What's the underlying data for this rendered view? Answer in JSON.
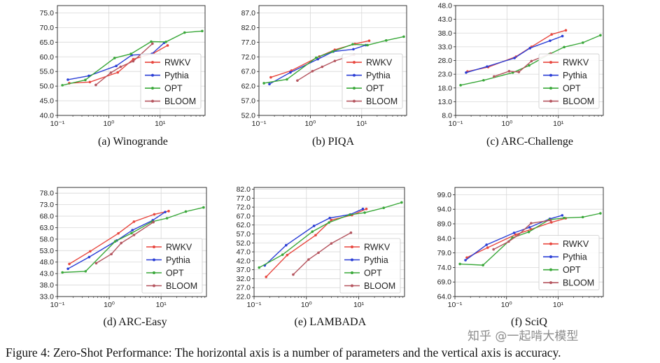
{
  "colors": {
    "RWKV": "#e8473f",
    "Pythia": "#2b3fd6",
    "OPT": "#3aa83a",
    "BLOOM": "#b5555f",
    "grid": "#d8d8d8",
    "axis": "#222222"
  },
  "figure_caption": "Figure 4: Zero-Shot Performance: The horizontal axis is a number of parameters and the vertical axis is accuracy.",
  "watermark": "知乎 @一起啃大模型",
  "x_axis": {
    "scale": "log",
    "range": [
      0.1,
      75
    ],
    "tick_labels": [
      "10⁻¹",
      "10⁰",
      "10¹"
    ],
    "tick_values": [
      0.1,
      1,
      10
    ]
  },
  "chart_data": [
    {
      "id": "winogrande",
      "type": "line",
      "caption": "(a) Winogrande",
      "ylim": [
        40.0,
        77.5
      ],
      "yticks": [
        "40.0",
        "45.0",
        "50.0",
        "55.0",
        "60.0",
        "65.0",
        "70.0",
        "75.0"
      ],
      "legend": [
        "RWKV",
        "Pythia",
        "OPT",
        "BLOOM"
      ],
      "legend_position": "center-right",
      "series": [
        {
          "name": "RWKV",
          "x": [
            0.17,
            0.43,
            1.5,
            3,
            7.4,
            14
          ],
          "y": [
            51.0,
            51.4,
            54.7,
            59.2,
            61.2,
            63.9
          ]
        },
        {
          "name": "Pythia",
          "x": [
            0.16,
            0.41,
            1.4,
            2.8,
            6.9,
            12
          ],
          "y": [
            52.2,
            53.5,
            56.9,
            60.6,
            61.0,
            64.8
          ]
        },
        {
          "name": "OPT",
          "x": [
            0.125,
            0.35,
            1.3,
            2.7,
            6.7,
            13,
            30,
            66
          ],
          "y": [
            50.3,
            52.1,
            59.6,
            61.0,
            65.2,
            65.1,
            68.3,
            68.8
          ]
        },
        {
          "name": "BLOOM",
          "x": [
            0.56,
            1.1,
            1.7,
            3,
            7.1
          ],
          "y": [
            50.4,
            54.6,
            56.6,
            58.5,
            64.5
          ]
        }
      ]
    },
    {
      "id": "piqa",
      "type": "line",
      "caption": "(b) PIQA",
      "ylim": [
        52.0,
        89.5
      ],
      "yticks": [
        "52.0",
        "57.0",
        "62.0",
        "67.0",
        "72.0",
        "77.0",
        "82.0",
        "87.0"
      ],
      "legend": [
        "RWKV",
        "Pythia",
        "OPT",
        "BLOOM"
      ],
      "legend_position": "center-right",
      "series": [
        {
          "name": "RWKV",
          "x": [
            0.17,
            0.43,
            1.5,
            3,
            7.4,
            14
          ],
          "y": [
            65.0,
            67.3,
            72.1,
            74.4,
            76.4,
            77.5
          ]
        },
        {
          "name": "Pythia",
          "x": [
            0.16,
            0.41,
            1.4,
            2.8,
            6.9,
            12
          ],
          "y": [
            62.7,
            66.7,
            71.2,
            73.8,
            74.6,
            76.0
          ]
        },
        {
          "name": "OPT",
          "x": [
            0.125,
            0.35,
            1.3,
            2.7,
            6.7,
            13,
            30,
            66
          ],
          "y": [
            63.0,
            64.3,
            71.7,
            73.8,
            76.3,
            76.0,
            77.6,
            78.9
          ]
        },
        {
          "name": "BLOOM",
          "x": [
            0.56,
            1.1,
            1.7,
            3,
            7.1
          ],
          "y": [
            63.9,
            67.1,
            68.6,
            70.6,
            72.7
          ]
        }
      ]
    },
    {
      "id": "arc-challenge",
      "type": "line",
      "caption": "(c) ARC-Challenge",
      "ylim": [
        8.0,
        48.0
      ],
      "yticks": [
        "8.0",
        "13.0",
        "18.0",
        "23.0",
        "28.0",
        "33.0",
        "38.0",
        "43.0",
        "48.0"
      ],
      "legend": [
        "RWKV",
        "Pythia",
        "OPT",
        "BLOOM"
      ],
      "legend_position": "center-right",
      "series": [
        {
          "name": "RWKV",
          "x": [
            0.17,
            0.43,
            1.5,
            3,
            7.4,
            14
          ],
          "y": [
            24.0,
            25.6,
            29.4,
            33.0,
            37.5,
            39.0
          ]
        },
        {
          "name": "Pythia",
          "x": [
            0.16,
            0.41,
            1.4,
            2.8,
            6.9,
            12
          ],
          "y": [
            23.6,
            25.8,
            28.9,
            32.5,
            35.2,
            36.9
          ]
        },
        {
          "name": "OPT",
          "x": [
            0.125,
            0.35,
            1.3,
            2.7,
            6.7,
            13,
            30,
            66
          ],
          "y": [
            19.0,
            20.8,
            23.6,
            26.2,
            30.3,
            32.9,
            34.5,
            37.2
          ]
        },
        {
          "name": "BLOOM",
          "x": [
            0.56,
            1.1,
            1.7,
            3,
            7.1
          ],
          "y": [
            22.2,
            24.1,
            23.8,
            27.8,
            30.5
          ]
        }
      ]
    },
    {
      "id": "arc-easy",
      "type": "line",
      "caption": "(d) ARC-Easy",
      "ylim": [
        33.0,
        80.5
      ],
      "yticks": [
        "33.0",
        "38.0",
        "43.0",
        "48.0",
        "53.0",
        "58.0",
        "63.0",
        "68.0",
        "73.0",
        "78.0"
      ],
      "legend": [
        "RWKV",
        "Pythia",
        "OPT",
        "BLOOM"
      ],
      "legend_position": "bottom-right",
      "series": [
        {
          "name": "RWKV",
          "x": [
            0.17,
            0.43,
            1.5,
            3,
            7.4,
            14
          ],
          "y": [
            47.2,
            52.7,
            60.5,
            65.6,
            68.8,
            70.2
          ]
        },
        {
          "name": "Pythia",
          "x": [
            0.16,
            0.41,
            1.4,
            2.8,
            6.9,
            12
          ],
          "y": [
            45.1,
            50.2,
            57.4,
            61.9,
            66.2,
            69.8
          ]
        },
        {
          "name": "OPT",
          "x": [
            0.125,
            0.35,
            1.3,
            2.7,
            6.7,
            13,
            30,
            66
          ],
          "y": [
            43.5,
            44.0,
            57.0,
            60.6,
            65.6,
            67.1,
            70.0,
            71.8
          ]
        },
        {
          "name": "BLOOM",
          "x": [
            0.56,
            1.1,
            1.7,
            3,
            7.1
          ],
          "y": [
            47.5,
            51.5,
            56.3,
            59.8,
            65.4
          ]
        }
      ]
    },
    {
      "id": "lambada",
      "type": "line",
      "caption": "(e) LAMBADA",
      "ylim": [
        22.0,
        83.0
      ],
      "yticks": [
        "22.0",
        "27.0",
        "32.0",
        "37.0",
        "42.0",
        "47.0",
        "52.0",
        "57.0",
        "62.0",
        "67.0",
        "72.0",
        "77.0",
        "82.0"
      ],
      "legend": [
        "RWKV",
        "Pythia",
        "OPT",
        "BLOOM"
      ],
      "legend_position": "bottom-right",
      "series": [
        {
          "name": "RWKV",
          "x": [
            0.17,
            0.43,
            1.5,
            3,
            7.4,
            14
          ],
          "y": [
            33.0,
            45.2,
            56.3,
            64.8,
            67.5,
            71.0
          ]
        },
        {
          "name": "Pythia",
          "x": [
            0.16,
            0.41,
            1.4,
            2.8,
            6.9,
            12
          ],
          "y": [
            39.4,
            50.7,
            61.5,
            65.9,
            67.9,
            71.0
          ]
        },
        {
          "name": "OPT",
          "x": [
            0.125,
            0.35,
            1.3,
            2.7,
            6.7,
            13,
            30,
            66
          ],
          "y": [
            38.2,
            45.4,
            58.3,
            63.4,
            67.7,
            68.9,
            71.6,
            74.6
          ]
        },
        {
          "name": "BLOOM",
          "x": [
            0.56,
            1.1,
            1.7,
            3,
            7.1
          ],
          "y": [
            34.3,
            42.7,
            46.5,
            51.7,
            57.7
          ]
        }
      ]
    },
    {
      "id": "sciq",
      "type": "line",
      "caption": "(f) SciQ",
      "ylim": [
        64.0,
        101.5
      ],
      "yticks": [
        "64.0",
        "69.0",
        "74.0",
        "79.0",
        "84.0",
        "89.0",
        "94.0",
        "99.0"
      ],
      "legend": [
        "RWKV",
        "Pythia",
        "OPT",
        "BLOOM"
      ],
      "legend_position": "center-right",
      "series": [
        {
          "name": "RWKV",
          "x": [
            0.17,
            0.43,
            1.5,
            3,
            7.4,
            14
          ],
          "y": [
            77.4,
            80.8,
            85.3,
            87.1,
            89.5,
            90.9
          ]
        },
        {
          "name": "Pythia",
          "x": [
            0.16,
            0.41,
            1.4,
            2.8,
            6.9,
            12
          ],
          "y": [
            76.5,
            81.8,
            85.9,
            87.8,
            90.7,
            91.9
          ]
        },
        {
          "name": "OPT",
          "x": [
            0.125,
            0.35,
            1.3,
            2.7,
            6.7,
            13,
            30,
            66
          ],
          "y": [
            75.2,
            74.8,
            84.2,
            86.2,
            90.4,
            91.0,
            91.3,
            92.6
          ]
        },
        {
          "name": "BLOOM",
          "x": [
            0.56,
            1.1,
            1.7,
            3,
            7.1
          ],
          "y": [
            80.2,
            82.9,
            85.2,
            89.2,
            90.2
          ]
        }
      ]
    }
  ]
}
